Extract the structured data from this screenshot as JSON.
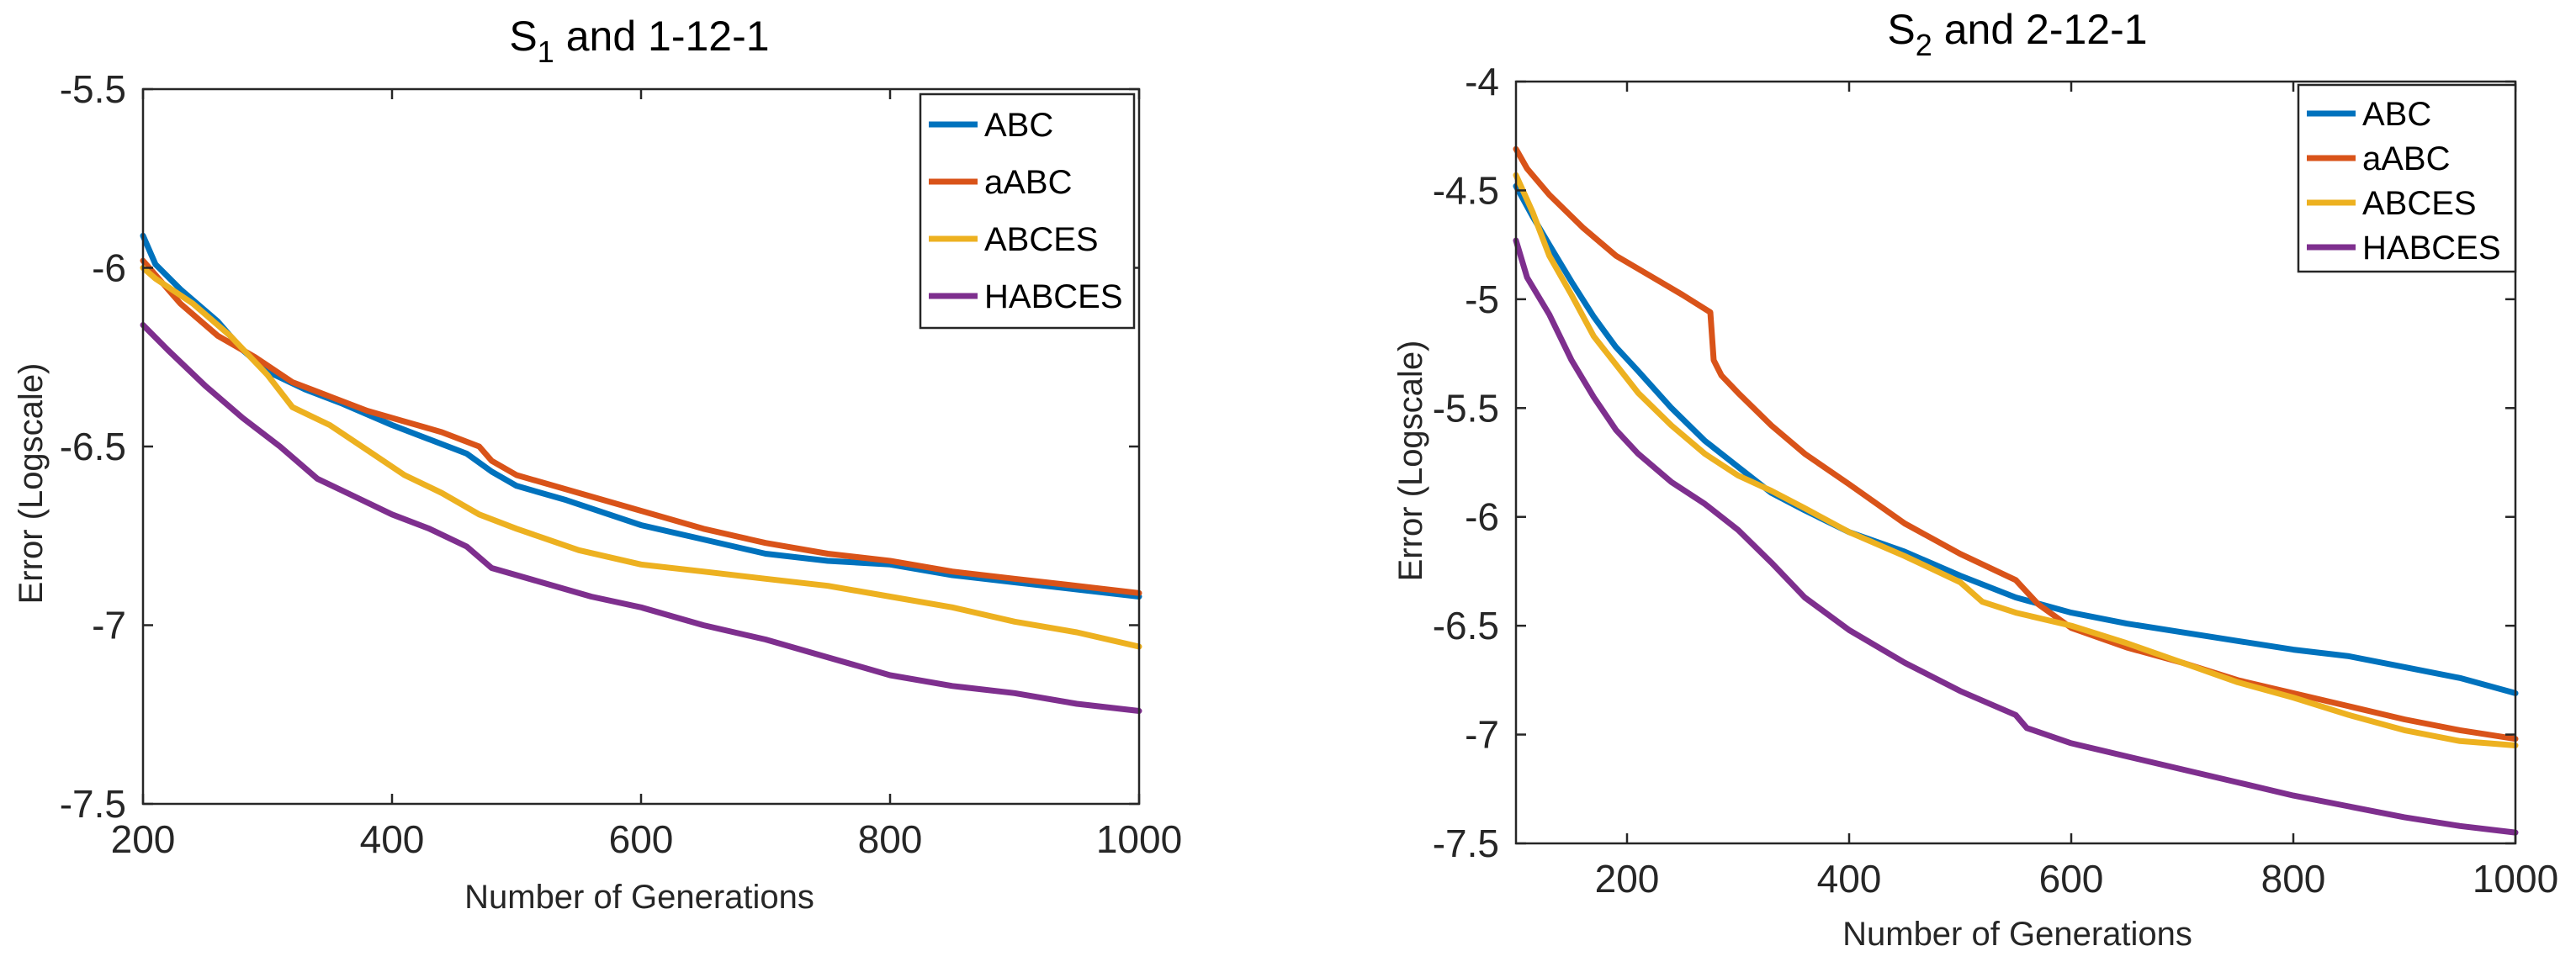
{
  "chart_data": [
    {
      "type": "line",
      "title": "S",
      "title_sub": "1",
      "title_rest": " and 1-12-1",
      "xlabel": "Number of Generations",
      "ylabel": "Error (Logscale)",
      "xlim": [
        200,
        1000
      ],
      "ylim": [
        -7.5,
        -5.5
      ],
      "xticks": [
        200,
        400,
        600,
        800,
        1000
      ],
      "yticks": [
        -5.5,
        -6,
        -6.5,
        -7,
        -7.5
      ],
      "legend_position": "top-right",
      "series": [
        {
          "name": "ABC",
          "color": "#0072BD",
          "x": [
            200,
            210,
            230,
            260,
            280,
            300,
            330,
            360,
            400,
            430,
            460,
            480,
            500,
            540,
            600,
            650,
            700,
            750,
            800,
            850,
            900,
            950,
            1000
          ],
          "y": [
            -5.91,
            -5.99,
            -6.06,
            -6.15,
            -6.23,
            -6.29,
            -6.34,
            -6.38,
            -6.44,
            -6.48,
            -6.52,
            -6.57,
            -6.61,
            -6.65,
            -6.72,
            -6.76,
            -6.8,
            -6.82,
            -6.83,
            -6.86,
            -6.88,
            -6.9,
            -6.92
          ]
        },
        {
          "name": "aABC",
          "color": "#D95319",
          "x": [
            200,
            210,
            230,
            260,
            290,
            320,
            350,
            380,
            410,
            440,
            470,
            480,
            500,
            550,
            600,
            650,
            700,
            750,
            800,
            850,
            900,
            950,
            1000
          ],
          "y": [
            -5.98,
            -6.02,
            -6.1,
            -6.19,
            -6.25,
            -6.32,
            -6.36,
            -6.4,
            -6.43,
            -6.46,
            -6.5,
            -6.54,
            -6.58,
            -6.63,
            -6.68,
            -6.73,
            -6.77,
            -6.8,
            -6.82,
            -6.85,
            -6.87,
            -6.89,
            -6.91
          ]
        },
        {
          "name": "ABCES",
          "color": "#EDB120",
          "x": [
            200,
            210,
            240,
            270,
            300,
            320,
            350,
            380,
            410,
            440,
            470,
            500,
            550,
            600,
            650,
            700,
            750,
            800,
            850,
            900,
            950,
            1000
          ],
          "y": [
            -6.0,
            -6.03,
            -6.1,
            -6.19,
            -6.3,
            -6.39,
            -6.44,
            -6.51,
            -6.58,
            -6.63,
            -6.69,
            -6.73,
            -6.79,
            -6.83,
            -6.85,
            -6.87,
            -6.89,
            -6.92,
            -6.95,
            -6.99,
            -7.02,
            -7.06
          ]
        },
        {
          "name": "HABCES",
          "color": "#7E2F8E",
          "x": [
            200,
            220,
            250,
            280,
            310,
            340,
            370,
            400,
            430,
            460,
            480,
            520,
            560,
            600,
            650,
            700,
            750,
            800,
            850,
            900,
            950,
            1000
          ],
          "y": [
            -6.16,
            -6.23,
            -6.33,
            -6.42,
            -6.5,
            -6.59,
            -6.64,
            -6.69,
            -6.73,
            -6.78,
            -6.84,
            -6.88,
            -6.92,
            -6.95,
            -7.0,
            -7.04,
            -7.09,
            -7.14,
            -7.17,
            -7.19,
            -7.22,
            -7.24
          ]
        }
      ]
    },
    {
      "type": "line",
      "title": "S",
      "title_sub": "2",
      "title_rest": " and 2-12-1",
      "xlabel": "Number of Generations",
      "ylabel": "Error (Logscale)",
      "xlim": [
        100,
        1000
      ],
      "ylim": [
        -7.5,
        -4
      ],
      "xticks": [
        200,
        400,
        600,
        800,
        1000
      ],
      "yticks": [
        -4,
        -4.5,
        -5,
        -5.5,
        -6,
        -6.5,
        -7,
        -7.5
      ],
      "legend_position": "top-right",
      "series": [
        {
          "name": "ABC",
          "color": "#0072BD",
          "x": [
            100,
            115,
            130,
            150,
            170,
            190,
            210,
            240,
            270,
            300,
            330,
            360,
            400,
            450,
            500,
            550,
            600,
            650,
            700,
            750,
            800,
            850,
            900,
            950,
            1000
          ],
          "y": [
            -4.48,
            -4.62,
            -4.75,
            -4.92,
            -5.08,
            -5.22,
            -5.33,
            -5.5,
            -5.65,
            -5.77,
            -5.89,
            -5.97,
            -6.07,
            -6.16,
            -6.27,
            -6.37,
            -6.44,
            -6.49,
            -6.53,
            -6.57,
            -6.61,
            -6.64,
            -6.69,
            -6.74,
            -6.81
          ]
        },
        {
          "name": "aABC",
          "color": "#D95319",
          "x": [
            100,
            110,
            130,
            160,
            190,
            220,
            250,
            275,
            278,
            285,
            300,
            330,
            360,
            400,
            450,
            500,
            550,
            570,
            600,
            650,
            700,
            750,
            800,
            850,
            900,
            950,
            1000
          ],
          "y": [
            -4.31,
            -4.4,
            -4.52,
            -4.67,
            -4.8,
            -4.89,
            -4.98,
            -5.06,
            -5.28,
            -5.35,
            -5.43,
            -5.58,
            -5.71,
            -5.85,
            -6.03,
            -6.17,
            -6.29,
            -6.4,
            -6.51,
            -6.6,
            -6.67,
            -6.75,
            -6.81,
            -6.87,
            -6.93,
            -6.98,
            -7.02
          ]
        },
        {
          "name": "ABCES",
          "color": "#EDB120",
          "x": [
            100,
            115,
            130,
            150,
            170,
            190,
            210,
            240,
            270,
            300,
            330,
            360,
            400,
            450,
            500,
            520,
            550,
            600,
            650,
            700,
            750,
            800,
            850,
            900,
            950,
            1000
          ],
          "y": [
            -4.43,
            -4.6,
            -4.8,
            -4.98,
            -5.17,
            -5.3,
            -5.43,
            -5.58,
            -5.71,
            -5.81,
            -5.88,
            -5.96,
            -6.07,
            -6.18,
            -6.3,
            -6.39,
            -6.44,
            -6.5,
            -6.58,
            -6.67,
            -6.76,
            -6.83,
            -6.91,
            -6.98,
            -7.03,
            -7.05
          ]
        },
        {
          "name": "HABCES",
          "color": "#7E2F8E",
          "x": [
            100,
            110,
            130,
            150,
            170,
            190,
            210,
            240,
            270,
            300,
            330,
            360,
            400,
            450,
            500,
            550,
            560,
            600,
            650,
            700,
            750,
            800,
            850,
            900,
            950,
            1000
          ],
          "y": [
            -4.73,
            -4.9,
            -5.07,
            -5.28,
            -5.45,
            -5.6,
            -5.71,
            -5.84,
            -5.94,
            -6.06,
            -6.21,
            -6.37,
            -6.52,
            -6.67,
            -6.8,
            -6.91,
            -6.97,
            -7.04,
            -7.1,
            -7.16,
            -7.22,
            -7.28,
            -7.33,
            -7.38,
            -7.42,
            -7.45
          ]
        }
      ]
    }
  ]
}
